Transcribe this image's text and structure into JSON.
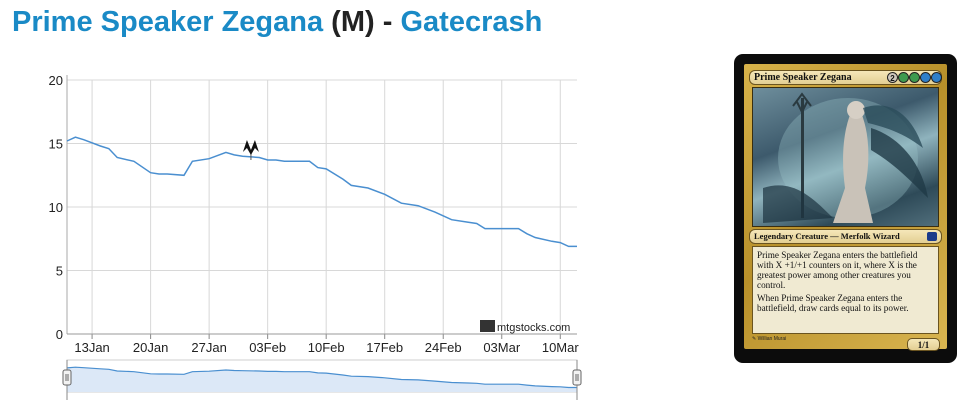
{
  "title": {
    "card_name": "Prime Speaker Zegana",
    "rarity_open": "(",
    "rarity": "M",
    "rarity_close": ")",
    "separator": "-",
    "set_name": "Gatecrash"
  },
  "colors": {
    "link": "#1a8ac6",
    "line": "#4a8fd0",
    "grid": "#d8d8d8",
    "navigator_fill": "#dce8f7"
  },
  "chart_data": {
    "type": "line",
    "title": "",
    "xlabel": "",
    "ylabel": "",
    "ylim": [
      0,
      20
    ],
    "yticks": [
      0,
      5,
      10,
      15,
      20
    ],
    "xlim": [
      "2013-01-10",
      "2013-03-12"
    ],
    "xticks": [
      "13Jan",
      "20Jan",
      "27Jan",
      "03Feb",
      "10Feb",
      "17Feb",
      "24Feb",
      "03Mar",
      "10Mar"
    ],
    "grid": true,
    "watermark": "mtgstocks.com",
    "series": [
      {
        "x": [
          "2013-01-10",
          "2013-01-11",
          "2013-01-12",
          "2013-01-14",
          "2013-01-15",
          "2013-01-16",
          "2013-01-18",
          "2013-01-20",
          "2013-01-21",
          "2013-01-22",
          "2013-01-24",
          "2013-01-25",
          "2013-01-27",
          "2013-01-29",
          "2013-01-30",
          "2013-01-31",
          "2013-02-02",
          "2013-02-03",
          "2013-02-04",
          "2013-02-05",
          "2013-02-06",
          "2013-02-08",
          "2013-02-09",
          "2013-02-10",
          "2013-02-12",
          "2013-02-13",
          "2013-02-15",
          "2013-02-17",
          "2013-02-19",
          "2013-02-21",
          "2013-02-23",
          "2013-02-25",
          "2013-02-27",
          "2013-02-28",
          "2013-03-01",
          "2013-03-03",
          "2013-03-05",
          "2013-03-06",
          "2013-03-07",
          "2013-03-09",
          "2013-03-10",
          "2013-03-11",
          "2013-03-12"
        ],
        "values": [
          15.2,
          15.5,
          15.3,
          14.8,
          14.6,
          13.9,
          13.6,
          12.7,
          12.6,
          12.6,
          12.5,
          13.6,
          13.8,
          14.3,
          14.1,
          14.0,
          13.9,
          13.7,
          13.7,
          13.6,
          13.6,
          13.6,
          13.1,
          13.0,
          12.2,
          11.7,
          11.5,
          11.0,
          10.3,
          10.1,
          9.6,
          9.0,
          8.8,
          8.7,
          8.3,
          8.3,
          8.3,
          7.9,
          7.6,
          7.3,
          7.2,
          6.9,
          6.9
        ]
      }
    ],
    "annotations": [
      {
        "type": "flag-marker",
        "x": "2013-02-01",
        "icon": "gatecrash-set-icon"
      }
    ],
    "navigator": {
      "range": [
        "2013-01-10",
        "2013-03-12"
      ]
    }
  },
  "card_image": {
    "name": "Prime Speaker Zegana",
    "mana_cost": [
      "2",
      "G",
      "G",
      "U",
      "U"
    ],
    "mana_colors": [
      "#cfc8bd",
      "#3f9a4f",
      "#3f9a4f",
      "#2f7fc9",
      "#2f7fc9"
    ],
    "type_line": "Legendary Creature — Merfolk Wizard",
    "rules_text_1": "Prime Speaker Zegana enters the battlefield with X +1/+1 counters on it, where X is the greatest power among other creatures you control.",
    "rules_text_2": "When Prime Speaker Zegana enters the battlefield, draw cards equal to its power.",
    "artist": "Willian Murai",
    "power_toughness": "1/1"
  }
}
